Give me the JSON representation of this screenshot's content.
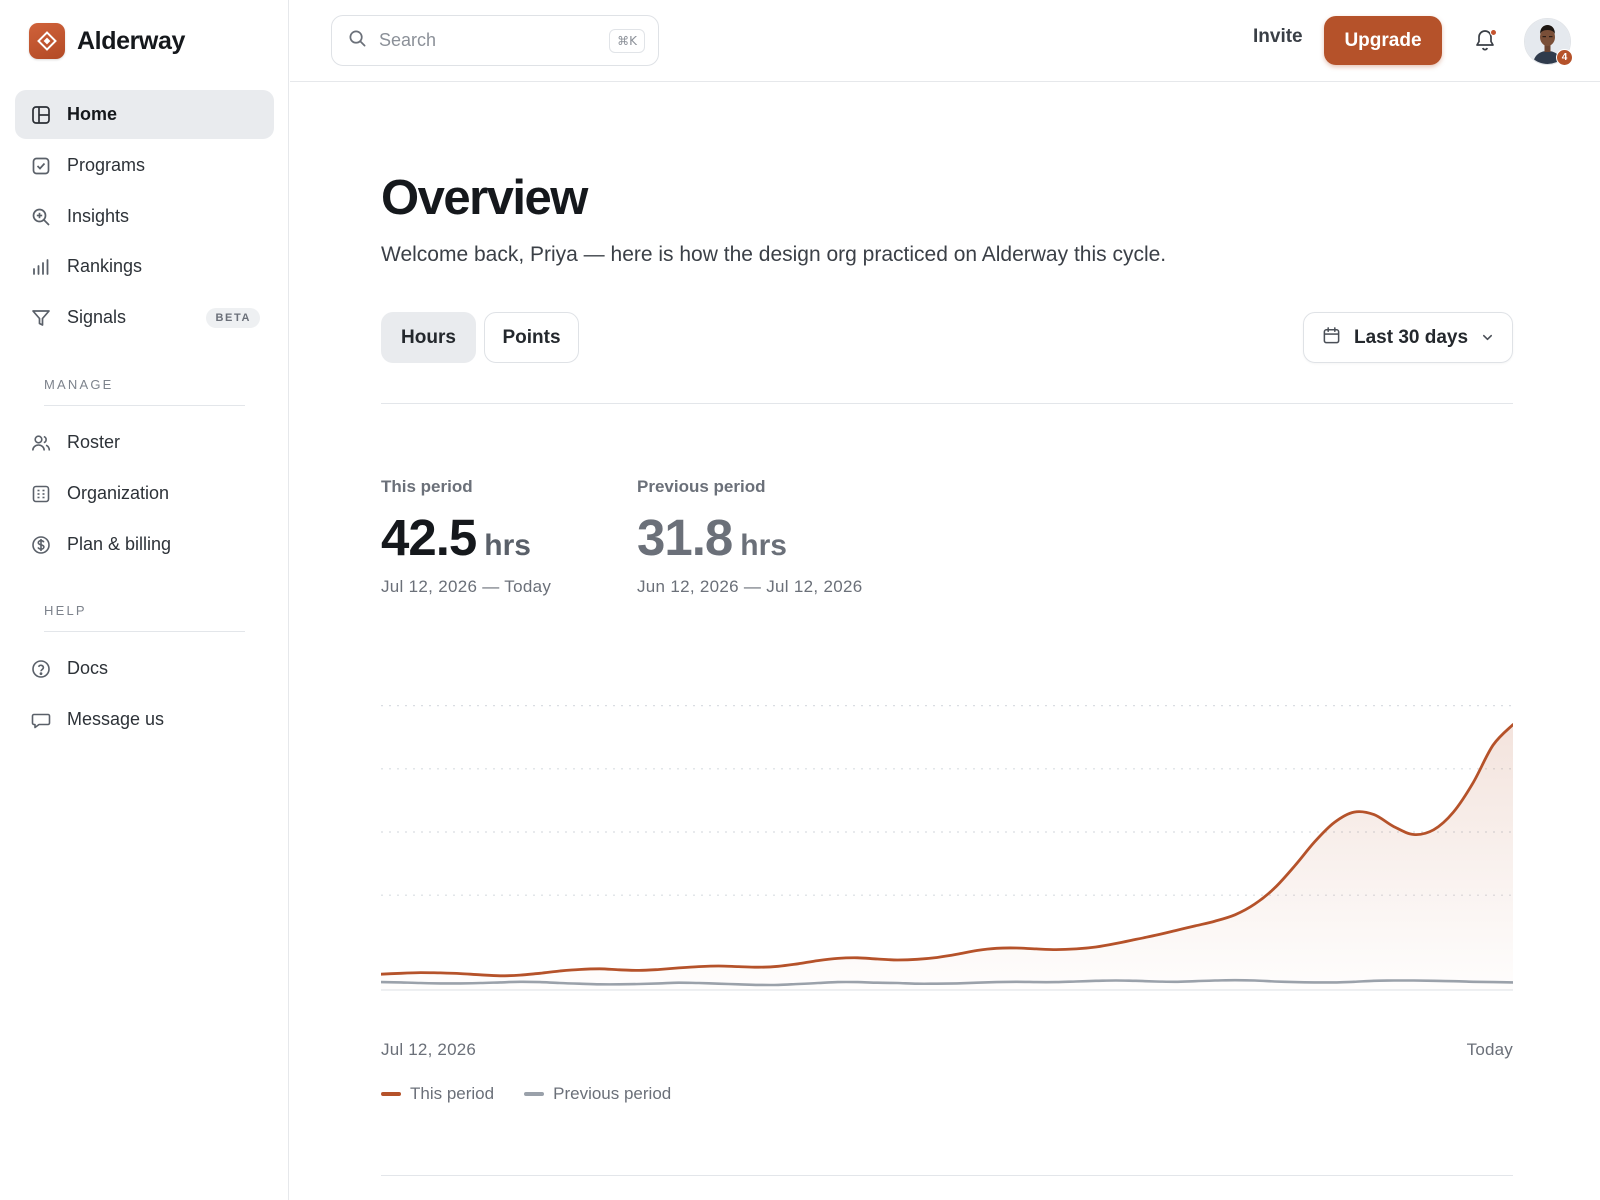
{
  "brand": {
    "name": "Alderway"
  },
  "sidebar": {
    "primary": [
      {
        "label": "Home",
        "icon": "layout-icon"
      },
      {
        "label": "Programs",
        "icon": "checkbox-icon"
      },
      {
        "label": "Insights",
        "icon": "zoom-in-icon"
      },
      {
        "label": "Rankings",
        "icon": "bar-chart-icon"
      },
      {
        "label": "Signals",
        "icon": "filter-icon",
        "badge": "BETA"
      }
    ],
    "manage_label": "MANAGE",
    "manage": [
      {
        "label": "Roster",
        "icon": "users-icon"
      },
      {
        "label": "Organization",
        "icon": "building-icon"
      },
      {
        "label": "Plan & billing",
        "icon": "dollar-icon"
      }
    ],
    "help_label": "HELP",
    "help": [
      {
        "label": "Docs",
        "icon": "question-icon"
      },
      {
        "label": "Message us",
        "icon": "message-icon"
      }
    ]
  },
  "topbar": {
    "search_placeholder": "Search",
    "search_shortcut": "⌘K",
    "invite_label": "Invite",
    "upgrade_label": "Upgrade",
    "notification_count": "4"
  },
  "page": {
    "title": "Overview",
    "subtitle": "Welcome back, Priya — here is how the design org practiced on Alderway this cycle.",
    "tabs": [
      "Hours",
      "Points"
    ],
    "active_tab": "Hours",
    "range_label": "Last 30 days"
  },
  "stats": {
    "current": {
      "label": "This period",
      "value": "42.5",
      "unit": "hrs",
      "range": "Jul 12, 2026 — Today"
    },
    "previous": {
      "label": "Previous period",
      "value": "31.8",
      "unit": "hrs",
      "range": "Jun 12, 2026 — Jul 12, 2026"
    }
  },
  "colors": {
    "accent": "#b5522a",
    "previous": "#9aa1aa",
    "grid": "#d9dde2"
  },
  "chart_data": {
    "type": "area",
    "x_start_label": "Jul 12, 2026",
    "x_end_label": "Today",
    "ylim": [
      0,
      100
    ],
    "grid": true,
    "series": [
      {
        "name": "This period",
        "values": [
          5,
          5.3,
          5.5,
          5.4,
          5.2,
          4.8,
          4.5,
          4.7,
          5.3,
          6,
          6.5,
          6.7,
          6.4,
          6.2,
          6.5,
          7,
          7.4,
          7.6,
          7.4,
          7.2,
          7.5,
          8.3,
          9.3,
          10,
          10.2,
          9.8,
          9.5,
          9.7,
          10.3,
          11.3,
          12.5,
          13.2,
          13.3,
          13,
          12.8,
          13,
          13.6,
          14.7,
          16,
          17.3,
          18.8,
          20.3,
          21.8,
          23.8,
          27.2,
          32.3,
          39.2,
          46.8,
          53,
          56.3,
          55.5,
          51.7,
          49.2,
          50.7,
          56.3,
          65.7,
          77.5,
          84
        ],
        "color": "#b5522a"
      },
      {
        "name": "Previous period",
        "values": [
          2.5,
          2.4,
          2.2,
          2.1,
          2.1,
          2.2,
          2.4,
          2.6,
          2.5,
          2.2,
          2,
          1.8,
          1.8,
          1.9,
          2.1,
          2.3,
          2.2,
          2,
          1.8,
          1.6,
          1.6,
          1.9,
          2.2,
          2.5,
          2.5,
          2.3,
          2.2,
          2,
          2,
          2.1,
          2.3,
          2.5,
          2.6,
          2.5,
          2.5,
          2.7,
          2.9,
          3,
          2.9,
          2.7,
          2.6,
          2.8,
          3,
          3.1,
          3,
          2.7,
          2.5,
          2.4,
          2.4,
          2.6,
          2.9,
          3,
          3,
          2.9,
          2.8,
          2.6,
          2.5,
          2.4
        ],
        "color": "#9aa1aa"
      }
    ]
  }
}
